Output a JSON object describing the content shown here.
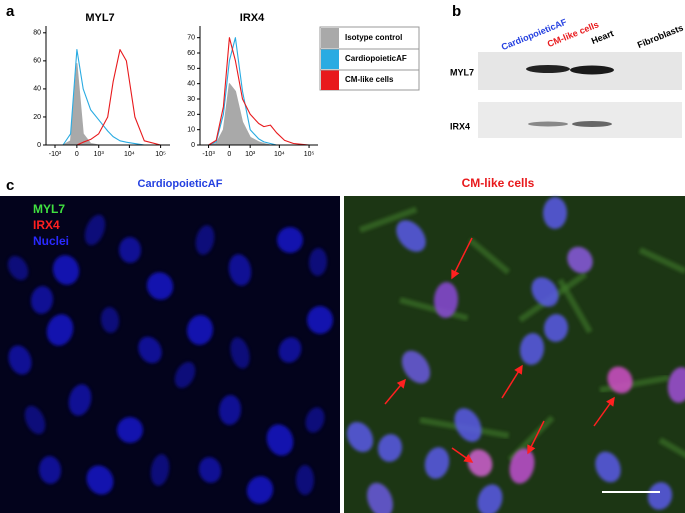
{
  "chart_data": [
    {
      "type": "line",
      "title": "MYL7",
      "xscale": "biexponential",
      "x": [
        -1000,
        -500,
        -200,
        0,
        200,
        500,
        1000,
        2000,
        3000,
        5000,
        8000,
        15000,
        30000,
        100000
      ],
      "xlim": [
        -2000,
        200000
      ],
      "xticks": [
        {
          "value": -1000,
          "label": "-10³"
        },
        0,
        {
          "value": 1000,
          "label": "10³"
        },
        {
          "value": 10000,
          "label": "10⁴"
        },
        {
          "value": 100000,
          "label": "10⁵"
        }
      ],
      "ylim": [
        0,
        82
      ],
      "yticks": [
        0,
        20,
        40,
        60,
        80
      ],
      "series": [
        {
          "name": "Isotype control",
          "color": "#a9a9a9",
          "filled": true,
          "values": [
            0,
            0,
            3,
            58,
            8,
            1,
            0,
            0,
            0,
            0,
            0,
            0,
            0,
            0
          ]
        },
        {
          "name": "CardiopoieticAF",
          "color": "#29abe2",
          "values": [
            0,
            0,
            8,
            68,
            40,
            25,
            18,
            10,
            6,
            3,
            2,
            1,
            0,
            0
          ]
        },
        {
          "name": "CM-like cells",
          "color": "#e8191c",
          "values": [
            0,
            0,
            0,
            0,
            2,
            4,
            8,
            20,
            45,
            68,
            60,
            20,
            3,
            0
          ]
        }
      ]
    },
    {
      "type": "line",
      "title": "IRX4",
      "xscale": "biexponential",
      "x": [
        -1000,
        -500,
        -200,
        0,
        200,
        500,
        1000,
        2000,
        3000,
        5000,
        8000,
        15000,
        30000,
        100000
      ],
      "xlim": [
        -2000,
        200000
      ],
      "xticks": [
        {
          "value": -1000,
          "label": "-10³"
        },
        0,
        {
          "value": 1000,
          "label": "10³"
        },
        {
          "value": 10000,
          "label": "10⁴"
        },
        {
          "value": 100000,
          "label": "10⁵"
        }
      ],
      "ylim": [
        0,
        75
      ],
      "yticks": [
        0,
        10,
        20,
        30,
        40,
        50,
        60,
        70
      ],
      "series": [
        {
          "name": "Isotype control",
          "color": "#a9a9a9",
          "filled": true,
          "values": [
            0,
            1,
            10,
            40,
            35,
            15,
            5,
            2,
            1,
            0,
            0,
            0,
            0,
            0
          ]
        },
        {
          "name": "CardiopoieticAF",
          "color": "#29abe2",
          "values": [
            0,
            2,
            20,
            55,
            70,
            35,
            10,
            4,
            2,
            1,
            0,
            0,
            0,
            0
          ]
        },
        {
          "name": "CM-like cells",
          "color": "#e8191c",
          "values": [
            0,
            3,
            25,
            70,
            55,
            30,
            20,
            14,
            12,
            13,
            8,
            3,
            1,
            0
          ]
        }
      ]
    }
  ],
  "panel_labels": [
    "a",
    "b",
    "c"
  ],
  "blot": {
    "lanes": [
      "CardiopoieticAF",
      "CM-like cells",
      "Heart",
      "Fibroblasts"
    ],
    "rows": [
      "MYL7",
      "IRX4"
    ]
  },
  "microscopy": {
    "titles": [
      "CardiopoieticAF",
      "CM-like cells"
    ],
    "channels": [
      "MYL7",
      "IRX4",
      "Nuclei"
    ]
  }
}
